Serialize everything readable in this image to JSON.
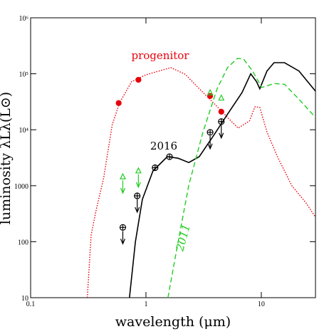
{
  "chart_data": {
    "type": "line",
    "xlabel": "wavelength (μm)",
    "ylabel": "luminosity λLλ(L⊙)",
    "xscale": "log",
    "yscale": "log",
    "xlim": [
      0.1,
      29.5
    ],
    "ylim": [
      10,
      1000000
    ],
    "xticks": [
      0.1,
      1,
      10
    ],
    "yticks": [
      10,
      100,
      1000,
      {
        "value": 10000,
        "label": "10⁴"
      },
      {
        "value": 100000,
        "label": "10⁵"
      },
      {
        "value": 1000000,
        "label": "10⁶"
      }
    ],
    "series": [
      {
        "name": "progenitor",
        "color": "#e8000b",
        "dash": "dotted",
        "x": [
          0.31,
          0.335,
          0.37,
          0.43,
          0.51,
          0.59,
          0.75,
          1.0,
          1.64,
          2.19,
          2.9,
          3.86,
          5.1,
          6.3,
          7.9,
          8.8,
          9.7,
          11.2,
          13.8,
          18.4,
          24.5,
          29.5
        ],
        "y": [
          10,
          132,
          367,
          1380,
          12300,
          30000,
          72000,
          96000,
          129000,
          98000,
          54000,
          30000,
          16600,
          10700,
          14400,
          25700,
          25000,
          9100,
          3300,
          1000,
          490,
          275
        ]
      },
      {
        "name": "2016",
        "color": "#000000",
        "dash": "solid",
        "x": [
          0.72,
          0.81,
          0.93,
          1.15,
          1.53,
          1.9,
          2.35,
          2.9,
          3.86,
          5.1,
          6.8,
          8.1,
          9.1,
          9.7,
          11.2,
          12.9,
          15.9,
          21.2,
          29.5
        ],
        "y": [
          10,
          99,
          570,
          1840,
          3300,
          3100,
          2600,
          3300,
          7900,
          19000,
          46000,
          100000,
          72000,
          54000,
          112000,
          158000,
          158000,
          112000,
          49000
        ]
      },
      {
        "name": "2011",
        "color": "#22cc22",
        "dash": "dashed",
        "x": [
          1.55,
          1.9,
          2.35,
          3.12,
          4.14,
          5.1,
          6.2,
          7.0,
          8.4,
          10.1,
          12.9,
          15.9,
          21.2,
          29.5
        ],
        "y": [
          10,
          99,
          1020,
          9100,
          54000,
          129000,
          188000,
          185000,
          112000,
          57000,
          67000,
          65000,
          35000,
          16600
        ]
      }
    ],
    "points": [
      {
        "color": "#e8000b",
        "marker": "filled",
        "limit": "none",
        "x": [
          0.58,
          0.86,
          3.6,
          4.5
        ],
        "y": [
          30000,
          78000,
          40000,
          21000
        ]
      },
      {
        "color": "#000000",
        "marker": "open",
        "limit": "none",
        "x": [
          1.2,
          1.6
        ],
        "y": [
          2100,
          3300
        ]
      },
      {
        "color": "#000000",
        "marker": "open",
        "limit": "upper",
        "x": [
          0.63,
          0.84,
          3.6,
          4.5
        ],
        "y": [
          180,
          660,
          9000,
          14000
        ]
      },
      {
        "color": "#22cc22",
        "marker": "triangle",
        "limit": "upper",
        "x": [
          0.63,
          0.86
        ],
        "y": [
          1450,
          1850
        ]
      },
      {
        "color": "#22cc22",
        "marker": "triangle",
        "limit": "none",
        "x": [
          3.6,
          4.5
        ],
        "y": [
          46000,
          37000
        ]
      }
    ]
  }
}
